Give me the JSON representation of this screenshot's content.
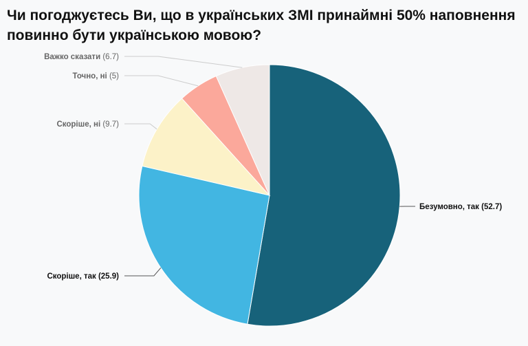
{
  "title": "Чи погоджуєтесь Ви, що в українських ЗМІ принаймні 50% наповнення повинно бути українською мовою?",
  "chart_data": {
    "type": "pie",
    "title": "Чи погоджуєтесь Ви, що в українських ЗМІ принаймні 50% наповнення повинно бути українською мовою?",
    "slices": [
      {
        "label": "Безумовно, так",
        "value": 52.7,
        "color": "#17627a",
        "label_color": "#111111"
      },
      {
        "label": "Скоріше, так",
        "value": 25.9,
        "color": "#42b6e2",
        "label_color": "#111111"
      },
      {
        "label": "Скоріше, ні",
        "value": 9.7,
        "color": "#fcf2c8",
        "label_color": "#666666"
      },
      {
        "label": "Точно, ні",
        "value": 5,
        "color": "#fba89b",
        "label_color": "#666666"
      },
      {
        "label": "Важко сказати",
        "value": 6.7,
        "color": "#eee8e6",
        "label_color": "#666666"
      }
    ]
  }
}
